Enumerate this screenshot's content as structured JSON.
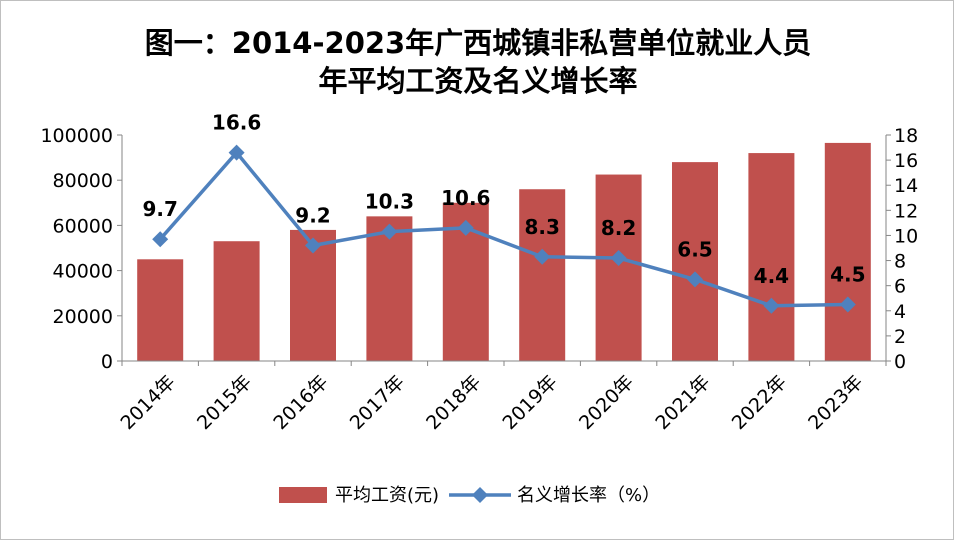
{
  "chart_data": {
    "type": "bar+line",
    "title_line1": "图一：2014-2023年广西城镇非私营单位就业人员",
    "title_line2": "年平均工资及名义增长率",
    "categories": [
      "2014年",
      "2015年",
      "2016年",
      "2017年",
      "2018年",
      "2019年",
      "2020年",
      "2021年",
      "2022年",
      "2023年"
    ],
    "series": [
      {
        "name": "平均工资(元)",
        "type": "bar",
        "axis": "left",
        "color": "#c0504d",
        "values": [
          45000,
          53000,
          58000,
          64000,
          70000,
          76000,
          82500,
          88000,
          92000,
          96500
        ]
      },
      {
        "name": "名义增长率（%）",
        "type": "line",
        "axis": "right",
        "color": "#4f81bd",
        "values": [
          9.7,
          16.6,
          9.2,
          10.3,
          10.6,
          8.3,
          8.2,
          6.5,
          4.4,
          4.5
        ]
      }
    ],
    "y_left": {
      "min": 0,
      "max": 100000,
      "ticks": [
        0,
        20000,
        40000,
        60000,
        80000,
        100000
      ]
    },
    "y_right": {
      "min": 0,
      "max": 18,
      "ticks": [
        0,
        2,
        4,
        6,
        8,
        10,
        12,
        14,
        16,
        18
      ]
    },
    "data_labels": [
      "9.7",
      "16.6",
      "9.2",
      "10.3",
      "10.6",
      "8.3",
      "8.2",
      "6.5",
      "4.4",
      "4.5"
    ],
    "legend_position": "bottom",
    "grid": false
  }
}
